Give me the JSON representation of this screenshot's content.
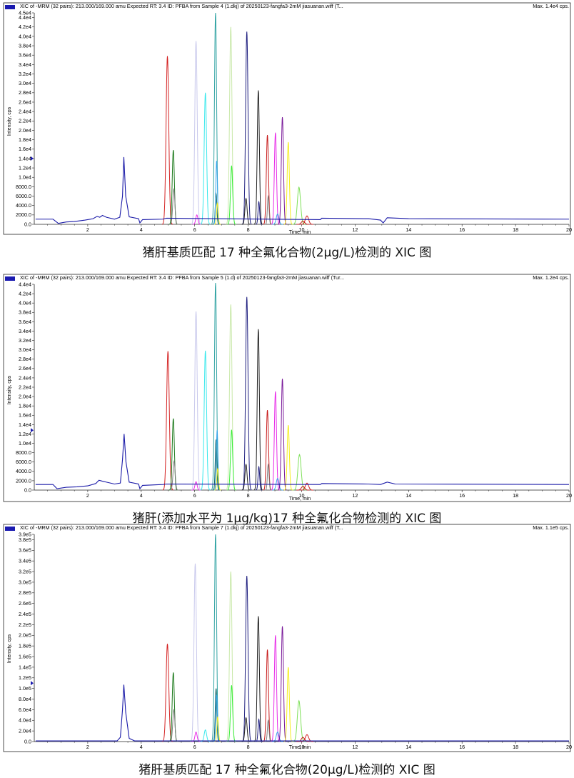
{
  "colors": {
    "frame": "#222222",
    "header_marker": "#1a1ab0",
    "baseline": "#1a1aa8",
    "peaks": [
      "#1a1aa8",
      "#d42222",
      "#1c7a1c",
      "#7f7f7f",
      "#c8c8ec",
      "#38e8ec",
      "#2ea2a2",
      "#0a6060",
      "#3aa6ea",
      "#c8e8a8",
      "#3aee3a",
      "#202080",
      "#202020",
      "#c71b1b",
      "#e82ae8",
      "#7a1a9a",
      "#f5ee20",
      "#7fe05a"
    ]
  },
  "chart_data": [
    {
      "type": "line",
      "header": "XIC of -MRM (32 pairs): 213.000/169.000 amu Expected RT: 3.4 ID: PFBA from Sample 4 (1.dkj) of 20250123-fangfa3-2mM jiasuanan.wiff (T...",
      "max_label": "Max. 1.4e4 cps.",
      "caption": "猪肝基质匹配 17 种全氟化合物(2μg/L)检测的 XIC 图",
      "xlabel": "Time, min",
      "ylabel": "Intensity, cps",
      "xlim": [
        0,
        20
      ],
      "ylim": [
        0,
        45000
      ],
      "x_ticks": [
        "2",
        "4",
        "6",
        "8",
        "10",
        "12",
        "14",
        "16",
        "18",
        "20"
      ],
      "y_ticks": [
        "0.0",
        "2000.0",
        "4000.0",
        "6000.0",
        "8000.0",
        "1.0e4",
        "1.2e4",
        "1.4e4",
        "1.6e4",
        "1.8e4",
        "2.0e4",
        "2.2e4",
        "2.4e4",
        "2.6e4",
        "2.8e4",
        "3.0e4",
        "3.2e4",
        "3.4e4",
        "3.6e4",
        "3.8e4",
        "4.0e4",
        "4.2e4",
        "4.4e4",
        "4.5e4"
      ],
      "y_tick_values": [
        0,
        2000,
        4000,
        6000,
        8000,
        10000,
        12000,
        14000,
        16000,
        18000,
        20000,
        22000,
        24000,
        26000,
        28000,
        30000,
        32000,
        34000,
        36000,
        38000,
        40000,
        42000,
        44000,
        45000
      ],
      "max_marker_y": 14000,
      "baseline": [
        [
          0.05,
          1100
        ],
        [
          0.7,
          1100
        ],
        [
          0.9,
          200
        ],
        [
          1.2,
          500
        ],
        [
          1.5,
          600
        ],
        [
          1.9,
          900
        ],
        [
          2.2,
          1200
        ],
        [
          2.35,
          1700
        ],
        [
          2.45,
          1500
        ],
        [
          2.55,
          1900
        ],
        [
          2.7,
          1500
        ],
        [
          3.0,
          1100
        ],
        [
          3.2,
          1500
        ],
        [
          3.3,
          6000
        ],
        [
          3.35,
          14300
        ],
        [
          3.42,
          6000
        ],
        [
          3.55,
          1600
        ],
        [
          3.9,
          1200
        ],
        [
          3.95,
          300
        ],
        [
          4.05,
          1000
        ],
        [
          4.8,
          1100
        ],
        [
          4.95,
          1300
        ],
        [
          10.7,
          1000
        ],
        [
          10.75,
          1300
        ],
        [
          12.5,
          1200
        ],
        [
          12.95,
          900
        ],
        [
          13.05,
          300
        ],
        [
          13.2,
          1400
        ],
        [
          14.0,
          1200
        ],
        [
          20.0,
          1100
        ]
      ],
      "peaks": [
        {
          "rt": 4.98,
          "height": 35800,
          "color": 1,
          "w": 0.05
        },
        {
          "rt": 5.2,
          "height": 15800,
          "color": 2,
          "w": 0.04
        },
        {
          "rt": 5.22,
          "height": 7500,
          "color": 3,
          "w": 0.04
        },
        {
          "rt": 6.05,
          "height": 39000,
          "color": 4,
          "w": 0.045
        },
        {
          "rt": 6.08,
          "height": 2000,
          "color": 14,
          "w": 0.04
        },
        {
          "rt": 6.4,
          "height": 28000,
          "color": 5,
          "w": 0.045
        },
        {
          "rt": 6.78,
          "height": 45000,
          "color": 6,
          "w": 0.04
        },
        {
          "rt": 6.8,
          "height": 6500,
          "color": 7,
          "w": 0.03
        },
        {
          "rt": 6.82,
          "height": 13500,
          "color": 8,
          "w": 0.03
        },
        {
          "rt": 6.85,
          "height": 4500,
          "color": 16,
          "w": 0.03
        },
        {
          "rt": 7.35,
          "height": 42000,
          "color": 9,
          "w": 0.045
        },
        {
          "rt": 7.38,
          "height": 12500,
          "color": 10,
          "w": 0.04
        },
        {
          "rt": 7.95,
          "height": 41000,
          "color": 11,
          "w": 0.045
        },
        {
          "rt": 7.92,
          "height": 5500,
          "color": 12,
          "w": 0.04
        },
        {
          "rt": 8.38,
          "height": 28500,
          "color": 12,
          "w": 0.04
        },
        {
          "rt": 8.4,
          "height": 4800,
          "color": 11,
          "w": 0.03
        },
        {
          "rt": 8.72,
          "height": 19000,
          "color": 13,
          "w": 0.04
        },
        {
          "rt": 8.75,
          "height": 6000,
          "color": 3,
          "w": 0.03
        },
        {
          "rt": 9.02,
          "height": 19500,
          "color": 14,
          "w": 0.04
        },
        {
          "rt": 9.1,
          "height": 2200,
          "color": 8,
          "w": 0.05
        },
        {
          "rt": 9.28,
          "height": 22800,
          "color": 15,
          "w": 0.04
        },
        {
          "rt": 9.5,
          "height": 17500,
          "color": 16,
          "w": 0.04
        },
        {
          "rt": 9.9,
          "height": 7900,
          "color": 17,
          "w": 0.06
        },
        {
          "rt": 10.05,
          "height": 700,
          "color": 13,
          "w": 0.06
        },
        {
          "rt": 10.2,
          "height": 1800,
          "color": 1,
          "w": 0.06
        }
      ]
    },
    {
      "type": "line",
      "header": "XIC of -MRM (32 pairs): 213.000/169.000 amu Expected RT: 3.4 ID: PFBA from Sample 5 (1.d) of 20250123-fangfa3-2mM jiasuanan.wiff (Tur...",
      "max_label": "Max. 1.2e4 cps.",
      "caption": "猪肝(添加水平为 1μg/kg)17 种全氟化合物检测的 XIC 图",
      "xlabel": "Time, min",
      "ylabel": "Intensity, cps",
      "xlim": [
        0,
        20
      ],
      "ylim": [
        0,
        44000
      ],
      "x_ticks": [
        "2",
        "4",
        "6",
        "8",
        "10",
        "12",
        "14",
        "16",
        "18",
        "20"
      ],
      "y_ticks": [
        "0.0",
        "2000.0",
        "4000.0",
        "6000.0",
        "8000.0",
        "1.0e4",
        "1.2e4",
        "1.4e4",
        "1.6e4",
        "1.8e4",
        "2.0e4",
        "2.2e4",
        "2.4e4",
        "2.6e4",
        "2.8e4",
        "3.0e4",
        "3.2e4",
        "3.4e4",
        "3.6e4",
        "3.8e4",
        "4.0e4",
        "4.2e4",
        "4.4e4"
      ],
      "y_tick_values": [
        0,
        2000,
        4000,
        6000,
        8000,
        10000,
        12000,
        14000,
        16000,
        18000,
        20000,
        22000,
        24000,
        26000,
        28000,
        30000,
        32000,
        34000,
        36000,
        38000,
        40000,
        42000,
        44000
      ],
      "max_marker_y": 12800,
      "baseline": [
        [
          0.05,
          1200
        ],
        [
          0.7,
          1200
        ],
        [
          0.85,
          300
        ],
        [
          1.2,
          600
        ],
        [
          1.6,
          700
        ],
        [
          2.0,
          900
        ],
        [
          2.3,
          1400
        ],
        [
          2.42,
          2100
        ],
        [
          2.55,
          1900
        ],
        [
          2.7,
          1700
        ],
        [
          3.0,
          1300
        ],
        [
          3.22,
          1500
        ],
        [
          3.3,
          6500
        ],
        [
          3.36,
          12000
        ],
        [
          3.43,
          6000
        ],
        [
          3.55,
          1700
        ],
        [
          3.9,
          1300
        ],
        [
          3.95,
          300
        ],
        [
          4.05,
          1000
        ],
        [
          4.8,
          1200
        ],
        [
          4.95,
          1300
        ],
        [
          10.7,
          1200
        ],
        [
          10.75,
          1400
        ],
        [
          12.5,
          1300
        ],
        [
          12.95,
          1200
        ],
        [
          13.2,
          1700
        ],
        [
          13.5,
          1300
        ],
        [
          20.0,
          1200
        ]
      ],
      "peaks": [
        {
          "rt": 5.0,
          "height": 29700,
          "color": 1,
          "w": 0.05
        },
        {
          "rt": 5.2,
          "height": 15300,
          "color": 2,
          "w": 0.04
        },
        {
          "rt": 5.23,
          "height": 6200,
          "color": 3,
          "w": 0.04
        },
        {
          "rt": 6.05,
          "height": 38200,
          "color": 4,
          "w": 0.045
        },
        {
          "rt": 6.05,
          "height": 1800,
          "color": 14,
          "w": 0.04
        },
        {
          "rt": 6.4,
          "height": 29800,
          "color": 5,
          "w": 0.045
        },
        {
          "rt": 6.78,
          "height": 44300,
          "color": 6,
          "w": 0.04
        },
        {
          "rt": 6.8,
          "height": 10800,
          "color": 7,
          "w": 0.03
        },
        {
          "rt": 6.84,
          "height": 12800,
          "color": 8,
          "w": 0.03
        },
        {
          "rt": 6.86,
          "height": 4600,
          "color": 16,
          "w": 0.03
        },
        {
          "rt": 7.35,
          "height": 39700,
          "color": 9,
          "w": 0.045
        },
        {
          "rt": 7.38,
          "height": 12900,
          "color": 10,
          "w": 0.04
        },
        {
          "rt": 7.95,
          "height": 41300,
          "color": 11,
          "w": 0.045
        },
        {
          "rt": 7.92,
          "height": 5500,
          "color": 12,
          "w": 0.04
        },
        {
          "rt": 8.38,
          "height": 34400,
          "color": 12,
          "w": 0.04
        },
        {
          "rt": 8.4,
          "height": 5000,
          "color": 11,
          "w": 0.03
        },
        {
          "rt": 8.72,
          "height": 17100,
          "color": 13,
          "w": 0.04
        },
        {
          "rt": 8.75,
          "height": 5500,
          "color": 3,
          "w": 0.03
        },
        {
          "rt": 9.02,
          "height": 21100,
          "color": 14,
          "w": 0.04
        },
        {
          "rt": 9.1,
          "height": 2500,
          "color": 8,
          "w": 0.05
        },
        {
          "rt": 9.28,
          "height": 23800,
          "color": 15,
          "w": 0.04
        },
        {
          "rt": 9.5,
          "height": 13900,
          "color": 16,
          "w": 0.04
        },
        {
          "rt": 9.92,
          "height": 7600,
          "color": 17,
          "w": 0.06
        },
        {
          "rt": 10.05,
          "height": 800,
          "color": 13,
          "w": 0.06
        },
        {
          "rt": 10.2,
          "height": 1500,
          "color": 1,
          "w": 0.06
        }
      ]
    },
    {
      "type": "line",
      "header": "XIC of -MRM (32 pairs): 213.000/169.000 amu Expected RT: 3.4 ID: PFBA from Sample 7 (1.dkj) of 20250123-fangfa3-2mM jiasuanan.wiff (T...",
      "max_label": "Max. 1.1e5 cps.",
      "caption": "猪肝基质匹配 17 种全氟化合物(20μg/L)检测的 XIC 图",
      "xlabel": "Time, min",
      "ylabel": "Intensity, cps",
      "xlim": [
        0,
        20
      ],
      "ylim": [
        0,
        390000
      ],
      "x_ticks": [
        "2",
        "4",
        "6",
        "8",
        "10",
        "12",
        "14",
        "16",
        "18",
        "20"
      ],
      "y_ticks": [
        "0.0",
        "2.0e4",
        "4.0e4",
        "6.0e4",
        "8.0e4",
        "1.0e5",
        "1.2e5",
        "1.4e5",
        "1.6e5",
        "1.8e5",
        "2.0e5",
        "2.2e5",
        "2.4e5",
        "2.6e5",
        "2.8e5",
        "3.0e5",
        "3.2e5",
        "3.4e5",
        "3.6e5",
        "3.8e5",
        "3.9e5"
      ],
      "y_tick_values": [
        0,
        20000,
        40000,
        60000,
        80000,
        100000,
        120000,
        140000,
        160000,
        180000,
        200000,
        220000,
        240000,
        260000,
        280000,
        300000,
        320000,
        340000,
        360000,
        380000,
        390000
      ],
      "max_marker_y": 110000,
      "baseline": [
        [
          0.05,
          1200
        ],
        [
          3.1,
          1200
        ],
        [
          3.22,
          8000
        ],
        [
          3.3,
          60000
        ],
        [
          3.35,
          107000
        ],
        [
          3.42,
          55000
        ],
        [
          3.55,
          6000
        ],
        [
          3.75,
          1300
        ],
        [
          10.7,
          1200
        ],
        [
          20.0,
          1200
        ]
      ],
      "peaks": [
        {
          "rt": 4.98,
          "height": 184000,
          "color": 1,
          "w": 0.05
        },
        {
          "rt": 5.2,
          "height": 130000,
          "color": 2,
          "w": 0.04
        },
        {
          "rt": 5.22,
          "height": 60000,
          "color": 3,
          "w": 0.04
        },
        {
          "rt": 6.02,
          "height": 335000,
          "color": 4,
          "w": 0.045
        },
        {
          "rt": 6.05,
          "height": 18000,
          "color": 14,
          "w": 0.04
        },
        {
          "rt": 6.4,
          "height": 22000,
          "color": 5,
          "w": 0.045
        },
        {
          "rt": 6.78,
          "height": 390000,
          "color": 6,
          "w": 0.04
        },
        {
          "rt": 6.8,
          "height": 100000,
          "color": 7,
          "w": 0.03
        },
        {
          "rt": 6.82,
          "height": 88000,
          "color": 8,
          "w": 0.03
        },
        {
          "rt": 6.86,
          "height": 46000,
          "color": 16,
          "w": 0.03
        },
        {
          "rt": 7.35,
          "height": 320000,
          "color": 9,
          "w": 0.045
        },
        {
          "rt": 7.38,
          "height": 106000,
          "color": 10,
          "w": 0.04
        },
        {
          "rt": 7.95,
          "height": 312000,
          "color": 11,
          "w": 0.045
        },
        {
          "rt": 7.92,
          "height": 45000,
          "color": 12,
          "w": 0.04
        },
        {
          "rt": 8.38,
          "height": 236000,
          "color": 12,
          "w": 0.04
        },
        {
          "rt": 8.4,
          "height": 42000,
          "color": 11,
          "w": 0.03
        },
        {
          "rt": 8.72,
          "height": 173000,
          "color": 13,
          "w": 0.04
        },
        {
          "rt": 8.75,
          "height": 40000,
          "color": 3,
          "w": 0.03
        },
        {
          "rt": 9.02,
          "height": 200000,
          "color": 14,
          "w": 0.04
        },
        {
          "rt": 9.1,
          "height": 18000,
          "color": 8,
          "w": 0.05
        },
        {
          "rt": 9.28,
          "height": 217000,
          "color": 15,
          "w": 0.04
        },
        {
          "rt": 9.5,
          "height": 140000,
          "color": 16,
          "w": 0.04
        },
        {
          "rt": 9.9,
          "height": 77000,
          "color": 17,
          "w": 0.06
        },
        {
          "rt": 10.05,
          "height": 8000,
          "color": 13,
          "w": 0.06
        },
        {
          "rt": 10.2,
          "height": 13000,
          "color": 1,
          "w": 0.06
        }
      ]
    }
  ]
}
